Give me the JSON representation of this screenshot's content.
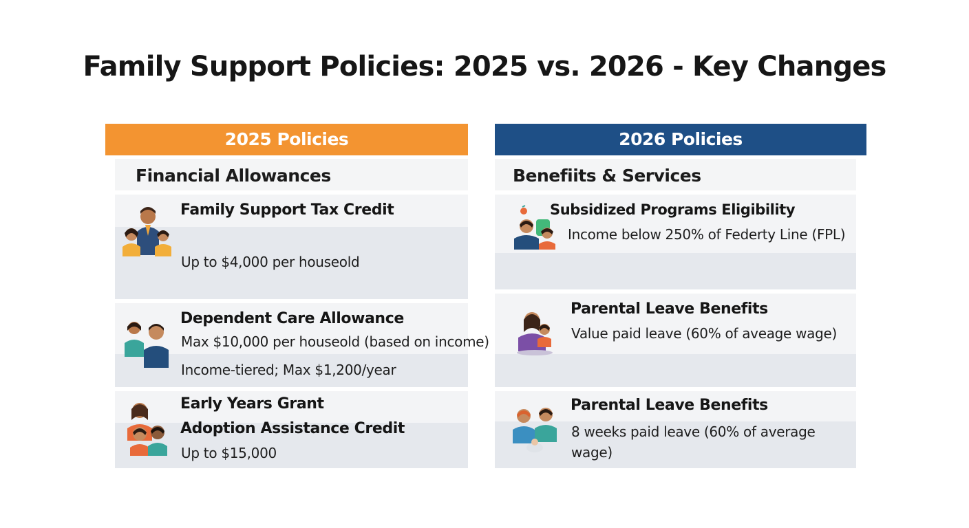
{
  "title": "Family Support Policies: 2025 vs. 2026 - Key Changes",
  "colors": {
    "orange": "#f39431",
    "blue": "#1e4f86",
    "panel": "#eef0f3"
  },
  "left": {
    "header": "2025 Policies",
    "section": "Financial Allowances",
    "cards": [
      {
        "icon": "family-three-icon",
        "head": "Family Support Tax Credit",
        "line1": "Up to $4,000 per houseold"
      },
      {
        "icon": "parent-child-icon",
        "head": "Dependent Care Allowance",
        "line1": "Max $10,000 per houseold (based on income)",
        "line2": "Income-tiered; Max $1,200/year"
      },
      {
        "icon": "family-group-icon",
        "head": "Early Years Grant",
        "head2": "Adoption Assistance Credit",
        "line1": "Up to $15,000"
      }
    ]
  },
  "right": {
    "header": "2026 Policies",
    "section": "Benefiits & Services",
    "cards": [
      {
        "icon": "family-money-icon",
        "head": "Subsidized Programs Eligibility",
        "line1": "Income below 250% of Federty Line (FPL)"
      },
      {
        "icon": "mother-child-icon",
        "head": "Parental Leave Benefits",
        "line1": "Value paid leave (60% of aveage wage)"
      },
      {
        "icon": "parents-baby-icon",
        "head": "Parental Leave Benefits",
        "line1": "8 weeks paid leave (60% of average wage)"
      }
    ]
  }
}
